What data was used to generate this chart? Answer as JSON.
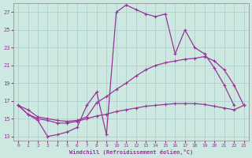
{
  "xlabel": "Windchill (Refroidissement éolien,°C)",
  "background_color": "#cce8e0",
  "line_color": "#993399",
  "grid_color": "#aacccc",
  "xlim": [
    -0.5,
    23.5
  ],
  "ylim": [
    12.5,
    28.0
  ],
  "yticks": [
    13,
    15,
    17,
    19,
    21,
    23,
    25,
    27
  ],
  "xticks": [
    0,
    1,
    2,
    3,
    4,
    5,
    6,
    7,
    8,
    9,
    10,
    11,
    12,
    13,
    14,
    15,
    16,
    17,
    18,
    19,
    20,
    21,
    22,
    23
  ],
  "series1_x": [
    0,
    1,
    2,
    3,
    4,
    5,
    6,
    7,
    8,
    9,
    10,
    11,
    12,
    13,
    14,
    15,
    16,
    17,
    18,
    19,
    20,
    21,
    22
  ],
  "series1_y": [
    16.5,
    15.5,
    14.8,
    13.0,
    13.2,
    13.5,
    14.0,
    16.5,
    18.0,
    13.2,
    27.0,
    27.8,
    27.3,
    26.8,
    26.5,
    26.8,
    22.3,
    25.0,
    23.0,
    22.3,
    20.7,
    18.8,
    16.5
  ],
  "series2_x": [
    0,
    1,
    2,
    3,
    4,
    5,
    6,
    7,
    8,
    9,
    10,
    11,
    12,
    13,
    14,
    15,
    16,
    17,
    18,
    19,
    20,
    21,
    22,
    23
  ],
  "series2_y": [
    16.5,
    16.0,
    15.2,
    15.0,
    14.8,
    14.7,
    14.8,
    15.2,
    16.8,
    17.5,
    18.3,
    19.0,
    19.8,
    20.5,
    21.0,
    21.3,
    21.5,
    21.7,
    21.8,
    22.0,
    21.5,
    20.5,
    18.8,
    16.5
  ],
  "series3_x": [
    0,
    1,
    2,
    3,
    4,
    5,
    6,
    7,
    8,
    9,
    10,
    11,
    12,
    13,
    14,
    15,
    16,
    17,
    18,
    19,
    20,
    21,
    22,
    23
  ],
  "series3_y": [
    16.5,
    15.5,
    15.0,
    14.8,
    14.5,
    14.5,
    14.7,
    15.0,
    15.3,
    15.5,
    15.8,
    16.0,
    16.2,
    16.4,
    16.5,
    16.6,
    16.7,
    16.7,
    16.7,
    16.6,
    16.4,
    16.2,
    16.0,
    16.5
  ]
}
